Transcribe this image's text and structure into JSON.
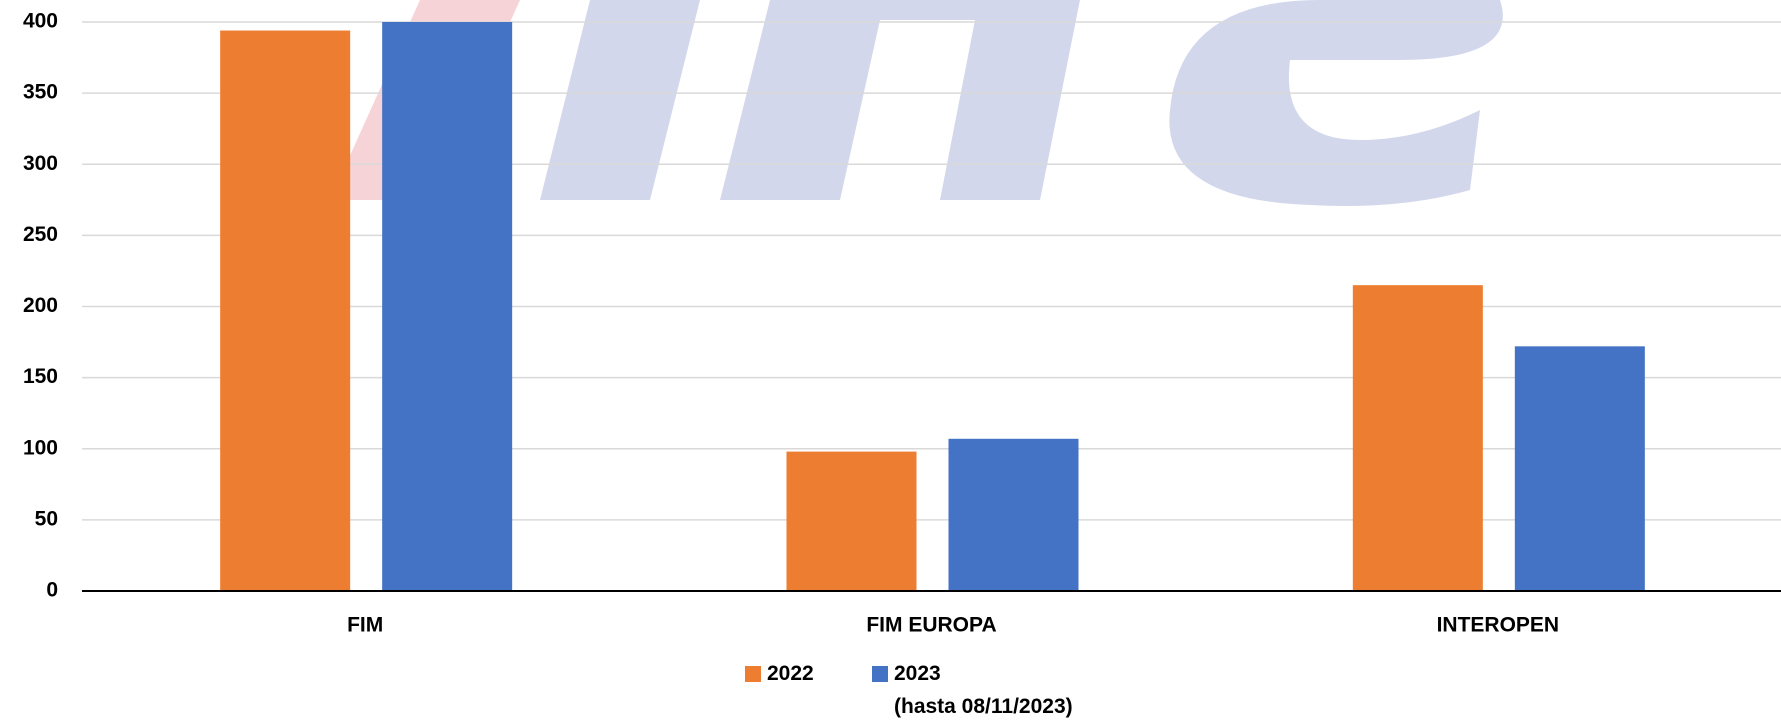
{
  "chart_data": {
    "type": "bar",
    "categories": [
      "FIM",
      "FIM EUROPA",
      "INTEROPEN"
    ],
    "series": [
      {
        "name": "2022",
        "color": "#ed7d31",
        "values": [
          394,
          98,
          215
        ]
      },
      {
        "name": "2023\n(hasta 08/11/2023)",
        "color": "#4472c4",
        "values": [
          400,
          107,
          172
        ]
      }
    ],
    "ylim": [
      0,
      400
    ],
    "yticks": [
      0,
      50,
      100,
      150,
      200,
      250,
      300,
      350,
      400
    ],
    "grid": true,
    "legend": "bottom"
  }
}
